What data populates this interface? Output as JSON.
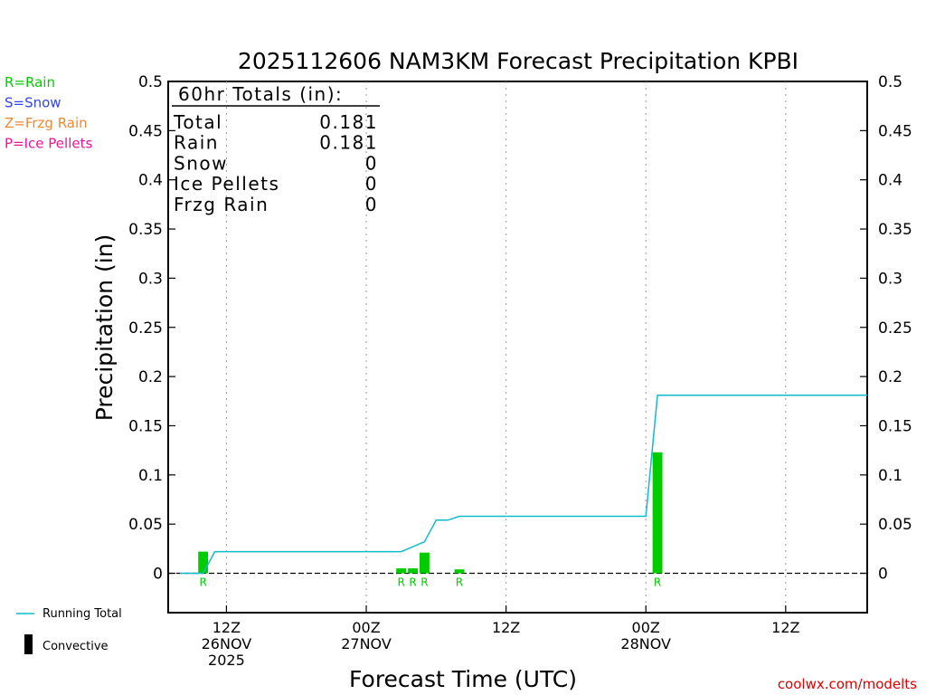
{
  "chart_data": {
    "type": "bar",
    "title": "2025112606 NAM3KM Forecast Precipitation KPBI",
    "xlabel": "Forecast Time (UTC)",
    "ylabel": "Precipitation (in)",
    "ylim": [
      -0.04,
      0.5
    ],
    "yticks": [
      "0",
      "0.05",
      "0.1",
      "0.15",
      "0.2",
      "0.25",
      "0.3",
      "0.35",
      "0.4",
      "0.45",
      "0.5"
    ],
    "ytick_values": [
      0,
      0.05,
      0.1,
      0.15,
      0.2,
      0.25,
      0.3,
      0.35,
      0.4,
      0.45,
      0.5
    ],
    "xlim_hours": [
      7,
      67
    ],
    "xticks": [
      {
        "hour": 12,
        "lines": [
          "12Z",
          "26NOV",
          "2025"
        ]
      },
      {
        "hour": 24,
        "lines": [
          "00Z",
          "27NOV"
        ]
      },
      {
        "hour": 36,
        "lines": [
          "12Z"
        ]
      },
      {
        "hour": 48,
        "lines": [
          "00Z",
          "28NOV"
        ]
      },
      {
        "hour": 60,
        "lines": [
          "12Z"
        ]
      }
    ],
    "grid": "dotted-vertical",
    "precip_bars": [
      {
        "hour": 10,
        "value": 0.022,
        "type": "R"
      },
      {
        "hour": 27,
        "value": 0.005,
        "type": "R"
      },
      {
        "hour": 28,
        "value": 0.005,
        "type": "R"
      },
      {
        "hour": 29,
        "value": 0.021,
        "type": "R"
      },
      {
        "hour": 32,
        "value": 0.004,
        "type": "R"
      },
      {
        "hour": 49,
        "value": 0.123,
        "type": "R"
      }
    ],
    "running_total": {
      "name": "Running Total",
      "x": [
        8,
        10,
        11,
        27,
        28,
        29,
        30,
        31,
        32,
        48,
        49,
        67
      ],
      "y": [
        0,
        0,
        0.022,
        0.022,
        0.027,
        0.032,
        0.054,
        0.054,
        0.058,
        0.058,
        0.181,
        0.181
      ]
    },
    "totals_box": {
      "heading": "60hr Totals (in):",
      "rows": [
        {
          "label": "Total",
          "value": "0.181"
        },
        {
          "label": "Rain",
          "value": "0.181"
        },
        {
          "label": "Snow",
          "value": "0"
        },
        {
          "label": "Ice Pellets",
          "value": "0"
        },
        {
          "label": "Frzg Rain",
          "value": "0"
        }
      ]
    },
    "type_legend": [
      {
        "text": "R=Rain",
        "color": "#00cc00"
      },
      {
        "text": "S=Snow",
        "color": "#3344ee"
      },
      {
        "text": "Z=Frzg Rain",
        "color": "#ee8833"
      },
      {
        "text": "P=Ice Pellets",
        "color": "#ee1199"
      }
    ],
    "legend": [
      {
        "label": "Running Total",
        "kind": "line",
        "color": "#11bbcc"
      },
      {
        "label": "Convective",
        "kind": "bar",
        "color": "#000000"
      }
    ],
    "colors": {
      "rain": "#00cc00",
      "running_total": "#11bbcc",
      "credit": "#dd0000"
    },
    "credit": "coolwx.com/modelts"
  }
}
